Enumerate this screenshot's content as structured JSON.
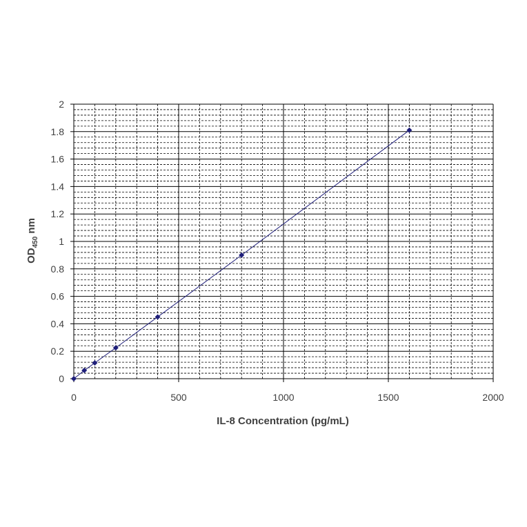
{
  "chart_data": {
    "type": "scatter",
    "xlabel": "IL-8 Concentration (pg/mL)",
    "ylabel_main": "OD",
    "ylabel_sub": "450",
    "ylabel_unit": " nm",
    "xlim": [
      0,
      2000
    ],
    "ylim": [
      0,
      2
    ],
    "x_ticks": [
      0,
      500,
      1000,
      1500,
      2000
    ],
    "y_ticks": [
      0,
      0.2,
      0.4,
      0.6,
      0.8,
      1,
      1.2,
      1.4,
      1.6,
      1.8,
      2
    ],
    "x_tick_labels": [
      "0",
      "500",
      "1000",
      "1500",
      "2000"
    ],
    "y_tick_labels": [
      "0",
      "0.2",
      "0.4",
      "0.6",
      "0.8",
      "1",
      "1.2",
      "1.4",
      "1.6",
      "1.8",
      "2"
    ],
    "grid": true,
    "series": [
      {
        "x": [
          0,
          50,
          100,
          200,
          400,
          800,
          1600
        ],
        "y": [
          0.0,
          0.06,
          0.115,
          0.225,
          0.45,
          0.9,
          1.81
        ],
        "color": "#1f1f7a",
        "marker": "diamond",
        "line": "straight"
      }
    ]
  }
}
